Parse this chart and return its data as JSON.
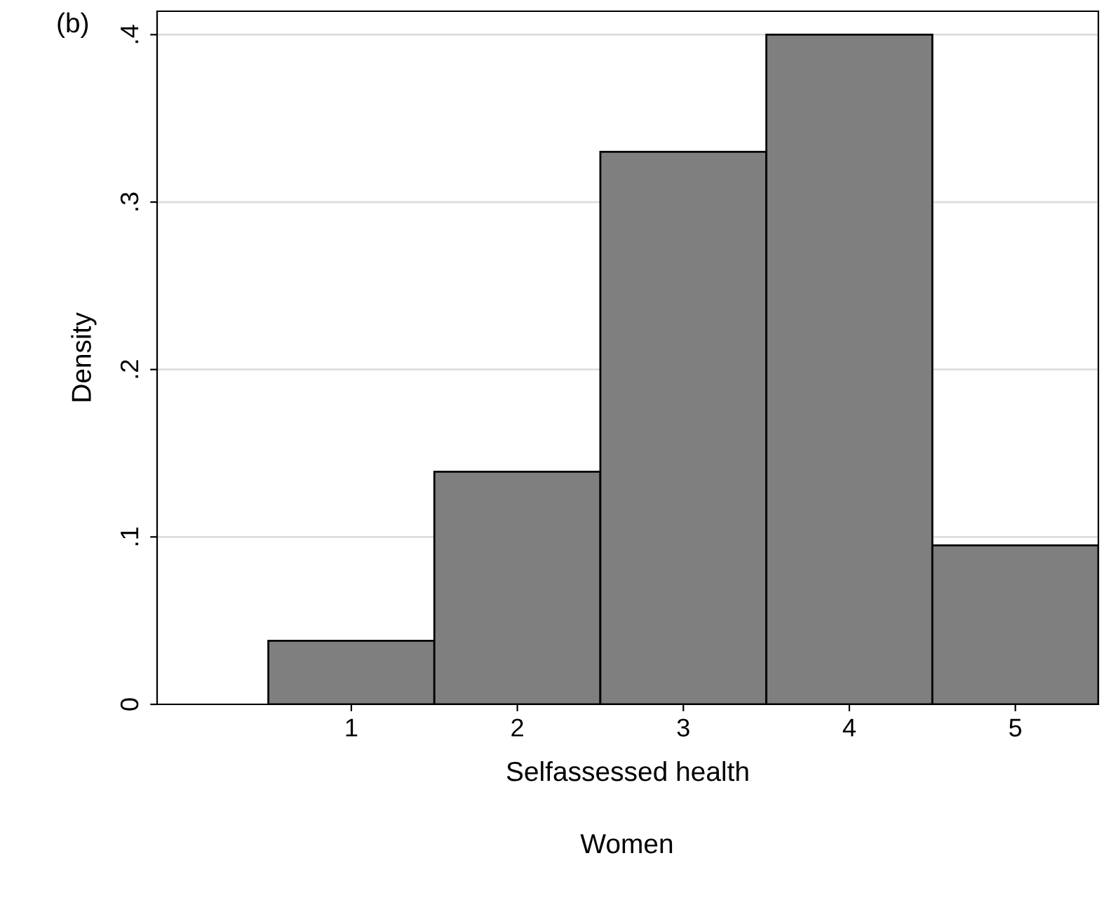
{
  "chart_data": {
    "type": "histogram",
    "xlabel": "Selfassessed health",
    "ylabel": "Density",
    "annotations": [
      "(b)",
      "Women"
    ],
    "bins": [
      0.5,
      1.5,
      2.5,
      3.5,
      4.5,
      5.5
    ],
    "values": [
      0.038,
      0.139,
      0.33,
      0.4,
      0.095
    ],
    "color": "#7f7f7f",
    "xlim": [
      -0.17,
      5.5
    ],
    "xticks": [
      1,
      2,
      3,
      4,
      5
    ],
    "ylim": [
      0,
      0.414
    ],
    "yticks": [
      {
        "value": 0,
        "label": "0"
      },
      {
        "value": 0.1,
        "label": ".1"
      },
      {
        "value": 0.2,
        "label": ".2"
      },
      {
        "value": 0.3,
        "label": ".3"
      },
      {
        "value": 0.4,
        "label": ".4"
      }
    ],
    "grid": "y",
    "legend": false
  }
}
